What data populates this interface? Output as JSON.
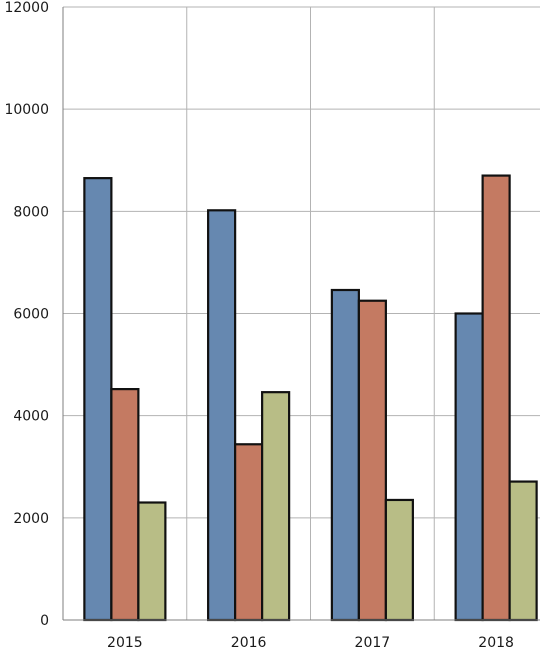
{
  "chart_data": {
    "type": "bar",
    "categories": [
      "2015",
      "2016",
      "2017",
      "2018"
    ],
    "series": [
      {
        "values": [
          8650,
          8020,
          6460,
          6000
        ],
        "color": "#6688b0"
      },
      {
        "values": [
          4520,
          3440,
          6250,
          8700
        ],
        "color": "#c47a62"
      },
      {
        "values": [
          2300,
          4460,
          2350,
          2710
        ],
        "color": "#b8bd86"
      }
    ],
    "ylim": [
      0,
      12000
    ],
    "yticks": [
      0,
      2000,
      4000,
      6000,
      8000,
      10000,
      12000
    ],
    "yticklabels": [
      "0",
      "2000",
      "4000",
      "6000",
      "8000",
      "10000",
      "12000"
    ],
    "grid": true,
    "title": "",
    "xlabel": "",
    "ylabel": ""
  }
}
